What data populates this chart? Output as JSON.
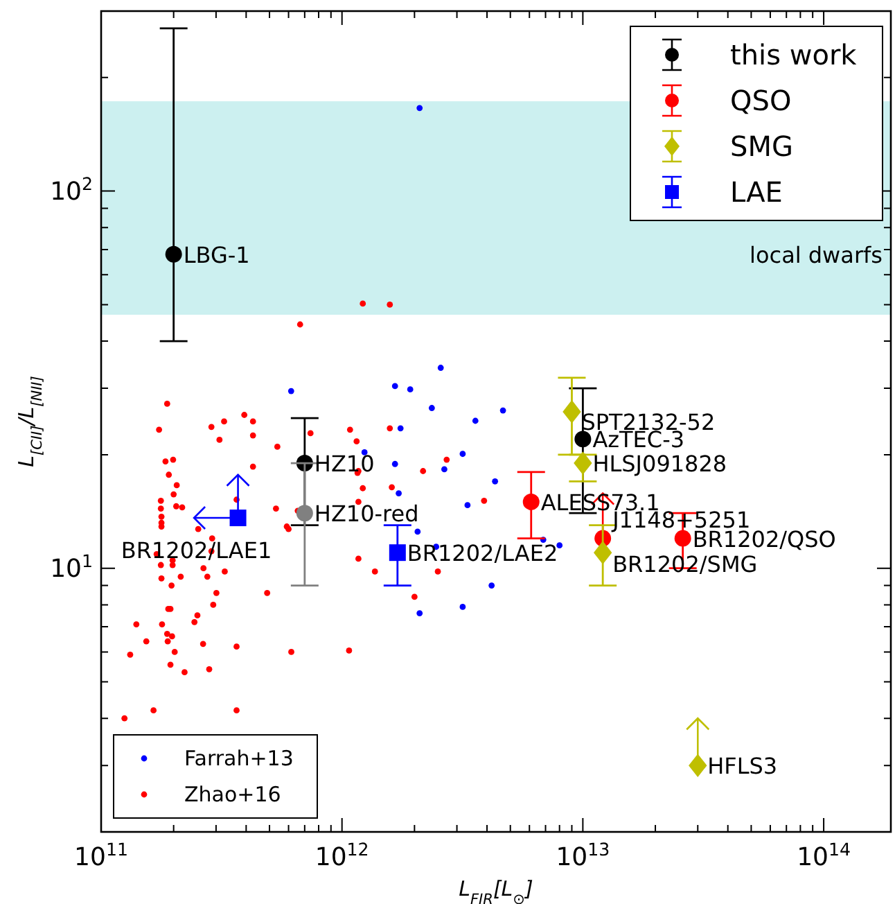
{
  "chart_data": {
    "type": "scatter",
    "xlabel": "L$_{FIR}$[L$_{⊙}$]",
    "ylabel": "L$_{[CII]}$/L$_{[NII]}$",
    "log": "xy",
    "xlim": [
      100000000000.0,
      190000000000000.0
    ],
    "ylim": [
      2,
      300
    ],
    "xticks": [
      {
        "value": 100000000000.0,
        "label": "10$^{11}$"
      },
      {
        "value": 200000000000.0,
        "label": null
      },
      {
        "value": 300000000000.0,
        "label": null
      },
      {
        "value": 400000000000.0,
        "label": null
      },
      {
        "value": 500000000000.0,
        "label": null
      },
      {
        "value": 600000000000.0,
        "label": null
      },
      {
        "value": 700000000000.0,
        "label": null
      },
      {
        "value": 800000000000.0,
        "label": null
      },
      {
        "value": 900000000000.0,
        "label": null
      },
      {
        "value": 1000000000000.0,
        "label": "10$^{12}$"
      },
      {
        "value": 2000000000000.0,
        "label": null
      },
      {
        "value": 3000000000000.0,
        "label": null
      },
      {
        "value": 4000000000000.0,
        "label": null
      },
      {
        "value": 5000000000000.0,
        "label": null
      },
      {
        "value": 6000000000000.0,
        "label": null
      },
      {
        "value": 7000000000000.0,
        "label": null
      },
      {
        "value": 8000000000000.0,
        "label": null
      },
      {
        "value": 9000000000000.0,
        "label": null
      },
      {
        "value": 10000000000000.0,
        "label": "10$^{13}$"
      },
      {
        "value": 20000000000000.0,
        "label": null
      },
      {
        "value": 30000000000000.0,
        "label": null
      },
      {
        "value": 40000000000000.0,
        "label": null
      },
      {
        "value": 50000000000000.0,
        "label": null
      },
      {
        "value": 60000000000000.0,
        "label": null
      },
      {
        "value": 70000000000000.0,
        "label": null
      },
      {
        "value": 80000000000000.0,
        "label": null
      },
      {
        "value": 90000000000000.0,
        "label": null
      },
      {
        "value": 100000000000000.0,
        "label": "10$^{14}$"
      }
    ],
    "yticks": [
      {
        "value": 2,
        "label": null
      },
      {
        "value": 3,
        "label": null
      },
      {
        "value": 4,
        "label": null
      },
      {
        "value": 5,
        "label": null
      },
      {
        "value": 6,
        "label": null
      },
      {
        "value": 7,
        "label": null
      },
      {
        "value": 8,
        "label": null
      },
      {
        "value": 9,
        "label": null
      },
      {
        "value": 10,
        "label": "10$^{1}$"
      },
      {
        "value": 20,
        "label": null
      },
      {
        "value": 30,
        "label": null
      },
      {
        "value": 40,
        "label": null
      },
      {
        "value": 50,
        "label": null
      },
      {
        "value": 60,
        "label": null
      },
      {
        "value": 70,
        "label": null
      },
      {
        "value": 80,
        "label": null
      },
      {
        "value": 90,
        "label": null
      },
      {
        "value": 100,
        "label": "10$^{2}$"
      },
      {
        "value": 200,
        "label": null
      },
      {
        "value": 300,
        "label": null
      }
    ],
    "bands": [
      {
        "axis": "y",
        "from": 47,
        "to": 173,
        "label": "local dwarfs",
        "color": "#ccf0f0"
      }
    ],
    "legend": "top right",
    "series": [
      {
        "name": "Farrah+13",
        "color": "#0000ff",
        "marker": "circle",
        "x": [
          2100000000000.0,
          615000000000.0,
          1660000000000.0,
          1920000000000.0,
          2570000000000.0,
          2360000000000.0,
          1750000000000.0,
          1240000000000.0,
          3580000000000.0,
          4660000000000.0,
          3170000000000.0,
          1660000000000.0,
          1720000000000.0,
          2660000000000.0,
          2060000000000.0,
          2460000000000.0,
          2100000000000.0,
          4320000000000.0,
          3320000000000.0,
          6850000000000.0,
          8000000000000.0,
          4180000000000.0,
          3170000000000.0
        ],
        "values": [
          166,
          29.5,
          30.4,
          29.8,
          34,
          26.6,
          23.5,
          20.3,
          24.6,
          26.2,
          20.1,
          18.9,
          15.8,
          18.3,
          12.5,
          11.4,
          7.6,
          17,
          14.7,
          11.9,
          11.5,
          9,
          7.9
        ]
      },
      {
        "name": "Zhao+16",
        "color": "#ff0000",
        "marker": "circle",
        "x": [
          1220000000000.0,
          1580000000000.0,
          670000000000.0,
          188000000000.0,
          174000000000.0,
          287000000000.0,
          324000000000.0,
          393000000000.0,
          427000000000.0,
          310000000000.0,
          427000000000.0,
          539000000000.0,
          740000000000.0,
          1080000000000.0,
          1580000000000.0,
          1150000000000.0,
          185000000000.0,
          199000000000.0,
          191000000000.0,
          206000000000.0,
          200000000000.0,
          205000000000.0,
          217000000000.0,
          177000000000.0,
          177000000000.0,
          178000000000.0,
          178000000000.0,
          178000000000.0,
          427000000000.0,
          365000000000.0,
          253000000000.0,
          289000000000.0,
          287000000000.0,
          266000000000.0,
          276000000000.0,
          326000000000.0,
          301000000000.0,
          292000000000.0,
          251000000000.0,
          244000000000.0,
          265000000000.0,
          281000000000.0,
          222000000000.0,
          140000000000.0,
          154000000000.0,
          132000000000.0,
          125000000000.0,
          165000000000.0,
          365000000000.0,
          365000000000.0,
          179000000000.0,
          188000000000.0,
          197000000000.0,
          189000000000.0,
          194000000000.0,
          190000000000.0,
          202000000000.0,
          194000000000.0,
          178000000000.0,
          196000000000.0,
          214000000000.0,
          198000000000.0,
          198000000000.0,
          177000000000.0,
          170000000000.0,
          532000000000.0,
          590000000000.0,
          600000000000.0,
          655000000000.0,
          489000000000.0,
          616000000000.0,
          1070000000000.0,
          1170000000000.0,
          1370000000000.0,
          2000000000000.0,
          2500000000000.0,
          1160000000000.0,
          1170000000000.0,
          1220000000000.0,
          1170000000000.0,
          1610000000000.0,
          2170000000000.0,
          2720000000000.0,
          3890000000000.0
        ],
        "values": [
          50.3,
          50,
          44.3,
          27.3,
          23.3,
          23.7,
          24.5,
          25.5,
          24.5,
          21.9,
          22.5,
          21,
          22.8,
          23.3,
          23.5,
          21.7,
          19.2,
          19.4,
          17.7,
          16.6,
          15.7,
          14.6,
          14.5,
          15.1,
          14.4,
          13.7,
          13.2,
          12.9,
          18.6,
          15.2,
          12.7,
          12,
          11.1,
          10,
          9.5,
          9.8,
          8.6,
          8,
          7.5,
          7.2,
          6.3,
          5.4,
          5.3,
          7.1,
          6.4,
          5.9,
          4,
          4.2,
          4.2,
          6.2,
          7.1,
          6.7,
          6.6,
          6.4,
          7.8,
          7.8,
          6,
          5.55,
          9.4,
          9,
          9.5,
          10.5,
          10.2,
          10.2,
          10.9,
          14.4,
          12.9,
          12.7,
          14.2,
          8.6,
          6,
          6.05,
          10.6,
          9.8,
          8.4,
          9.8,
          17.9,
          18.1,
          16.3,
          15,
          16.4,
          18.1,
          19.4,
          15.1
        ]
      },
      {
        "name": "this work",
        "color": "#000000",
        "marker": "circle",
        "x": [
          200000000000.0,
          700000000000.0,
          700000000000.0,
          10000000000000.0
        ],
        "values": [
          68,
          19,
          14,
          22
        ],
        "colors": [
          "#000000",
          "#000000",
          "#808080",
          "#000000"
        ],
        "errors": [
          [
            40,
            270
          ],
          [
            13,
            25
          ],
          [
            9,
            19
          ],
          [
            14,
            30
          ]
        ]
      },
      {
        "name": "QSO",
        "color": "#ff0000",
        "marker": "circle",
        "x": [
          6100000000000.0,
          12100000000000.0,
          26000000000000.0
        ],
        "values": [
          15,
          12,
          12
        ],
        "errors": [
          [
            12,
            18
          ],
          [
            12,
            15.8
          ],
          [
            10,
            14
          ]
        ]
      },
      {
        "name": "SMG",
        "color": "#bfbf00",
        "marker": "diamond",
        "x": [
          9000000000000.0,
          10000000000000.0,
          12100000000000.0,
          30000000000000.0
        ],
        "values": [
          26,
          19,
          11,
          3
        ],
        "errors": [
          [
            20,
            32
          ],
          [
            17,
            20
          ],
          [
            9,
            13
          ],
          [
            3,
            4
          ]
        ]
      },
      {
        "name": "LAE",
        "color": "#0000ff",
        "marker": "square",
        "x": [
          370000000000.0,
          1700000000000.0
        ],
        "values": [
          13.6,
          11
        ],
        "errors": [
          [
            13.6,
            17.7
          ],
          [
            9,
            13
          ]
        ],
        "xerrors": [
          [
            243000000000.0,
            370000000000.0
          ],
          null
        ]
      }
    ],
    "annotations": [
      {
        "text": "LBG-1",
        "x": 200000000000.0,
        "y": 68
      },
      {
        "text": "HZ10",
        "x": 700000000000.0,
        "y": 19
      },
      {
        "text": "HZ10-red",
        "x": 700000000000.0,
        "y": 14
      },
      {
        "text": "BR1202/LAE1",
        "x": 370000000000.0,
        "y": 13.6
      },
      {
        "text": "BR1202/LAE2",
        "x": 1700000000000.0,
        "y": 11
      },
      {
        "text": "ALESS73.1",
        "x": 6100000000000.0,
        "y": 15
      },
      {
        "text": "J1148+5251",
        "x": 12100000000000.0,
        "y": 13.5
      },
      {
        "text": "BR1202/QSO",
        "x": 26000000000000.0,
        "y": 12
      },
      {
        "text": "BR1202/SMG",
        "x": 12100000000000.0,
        "y": 10.3
      },
      {
        "text": "SPT2132-52",
        "x": 9000000000000.0,
        "y": 24.5
      },
      {
        "text": "AzTEC-3",
        "x": 10000000000000.0,
        "y": 22
      },
      {
        "text": "HLSJ091828",
        "x": 10000000000000.0,
        "y": 19
      },
      {
        "text": "HFLS3",
        "x": 30000000000000.0,
        "y": 3
      }
    ]
  }
}
